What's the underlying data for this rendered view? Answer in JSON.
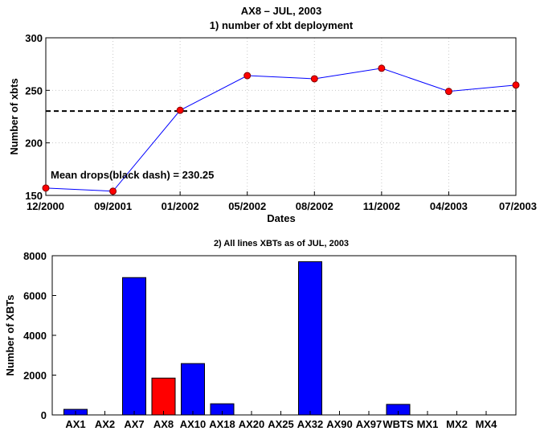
{
  "chart_data": [
    {
      "type": "line",
      "suptitle": "AX8 – JUL, 2003",
      "title": "1) number of xbt deployment",
      "xlabel": "Dates",
      "ylabel": "Number of xbts",
      "ylim": [
        150,
        300
      ],
      "yticks": [
        "150",
        "200",
        "250",
        "300"
      ],
      "categories": [
        "12/2000",
        "09/2001",
        "01/2002",
        "05/2002",
        "08/2002",
        "11/2002",
        "04/2003",
        "07/2003"
      ],
      "series": [
        {
          "values": [
            157,
            154,
            231,
            264,
            261,
            271,
            249,
            255
          ],
          "color": "#0000ff",
          "marker_color": "#ff0000"
        }
      ],
      "mean_line": {
        "value": 230.25,
        "style": "black dash"
      },
      "annotation": "Mean drops(black dash) = 230.25",
      "grid": true
    },
    {
      "type": "bar",
      "title": "2) All lines XBTs as of JUL, 2003",
      "xlabel": "",
      "ylabel": "Number of XBTs",
      "ylim": [
        0,
        8000
      ],
      "yticks": [
        "0",
        "2000",
        "4000",
        "6000",
        "8000"
      ],
      "categories": [
        "AX1",
        "AX2",
        "AX7",
        "AX8",
        "AX10",
        "AX18",
        "AX20",
        "AX25",
        "AX32",
        "AX90",
        "AX97",
        "WBTS",
        "MX1",
        "MX2",
        "MX4"
      ],
      "values": [
        280,
        0,
        6900,
        1850,
        2580,
        560,
        0,
        0,
        7700,
        0,
        0,
        530,
        0,
        0,
        0
      ],
      "colors": [
        "#0000ff",
        "#0000ff",
        "#0000ff",
        "#ff0000",
        "#0000ff",
        "#0000ff",
        "#0000ff",
        "#0000ff",
        "#0000ff",
        "#0000ff",
        "#0000ff",
        "#0000ff",
        "#0000ff",
        "#0000ff",
        "#0000ff"
      ],
      "grid": false
    }
  ]
}
